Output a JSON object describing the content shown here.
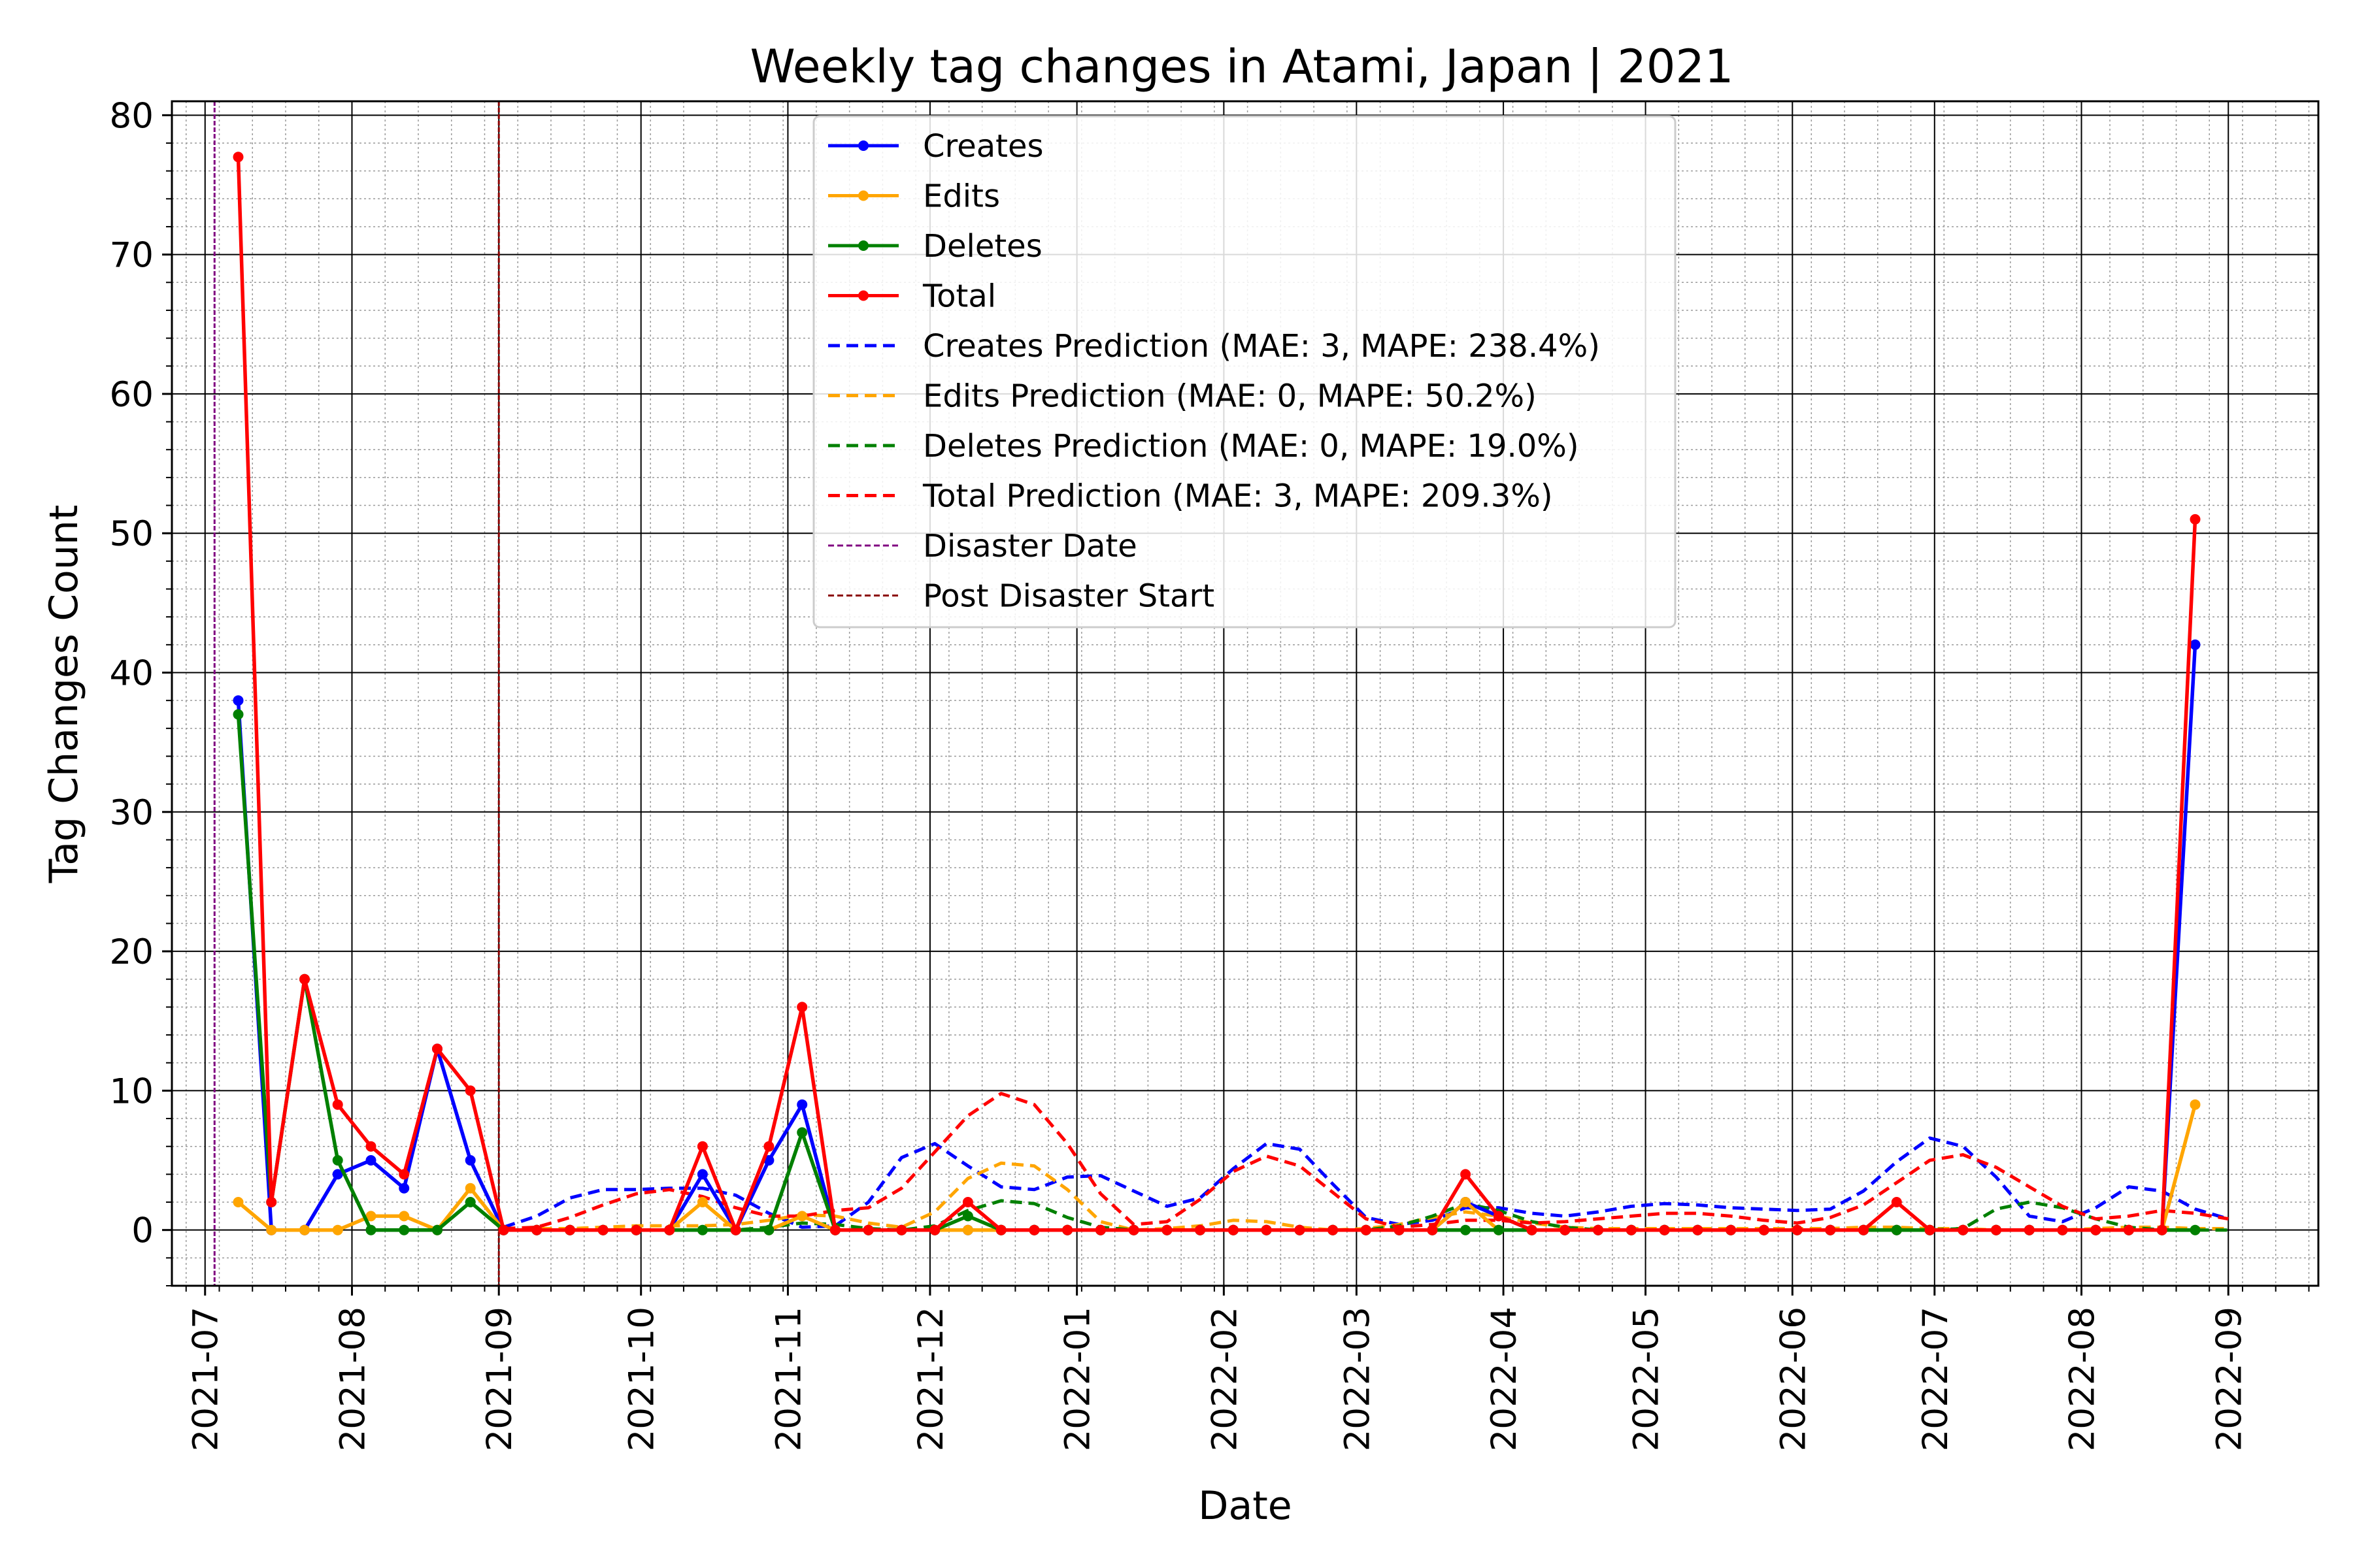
{
  "chart_data": {
    "type": "line",
    "title": "Weekly tag changes in Atami, Japan | 2021",
    "xlabel": "Date",
    "ylabel": "Tag Changes Count",
    "xlim": [
      "2021-06-24",
      "2022-09-20"
    ],
    "ylim": [
      -4,
      81
    ],
    "grid": true,
    "minor_grid": true,
    "legend_position": "upper center",
    "x_ticks": [
      "2021-07",
      "2021-08",
      "2021-09",
      "2021-10",
      "2021-11",
      "2021-12",
      "2022-01",
      "2022-02",
      "2022-03",
      "2022-04",
      "2022-05",
      "2022-06",
      "2022-07",
      "2022-08",
      "2022-09"
    ],
    "y_ticks": [
      0,
      10,
      20,
      30,
      40,
      50,
      60,
      70,
      80
    ],
    "x": [
      "2021-07-08",
      "2021-07-15",
      "2021-07-22",
      "2021-07-29",
      "2021-08-05",
      "2021-08-12",
      "2021-08-19",
      "2021-08-26",
      "2021-09-02",
      "2021-09-09",
      "2021-09-16",
      "2021-09-23",
      "2021-09-30",
      "2021-10-07",
      "2021-10-14",
      "2021-10-21",
      "2021-10-28",
      "2021-11-04",
      "2021-11-11",
      "2021-11-18",
      "2021-11-25",
      "2021-12-02",
      "2021-12-09",
      "2021-12-16",
      "2021-12-23",
      "2021-12-30",
      "2022-01-06",
      "2022-01-13",
      "2022-01-20",
      "2022-01-27",
      "2022-02-03",
      "2022-02-10",
      "2022-02-17",
      "2022-02-24",
      "2022-03-03",
      "2022-03-10",
      "2022-03-17",
      "2022-03-24",
      "2022-03-31",
      "2022-04-07",
      "2022-04-14",
      "2022-04-21",
      "2022-04-28",
      "2022-05-05",
      "2022-05-12",
      "2022-05-19",
      "2022-05-26",
      "2022-06-02",
      "2022-06-09",
      "2022-06-16",
      "2022-06-23",
      "2022-06-30",
      "2022-07-07",
      "2022-07-14",
      "2022-07-21",
      "2022-07-28",
      "2022-08-04",
      "2022-08-11",
      "2022-08-18",
      "2022-08-25"
    ],
    "series": [
      {
        "name": "Creates",
        "color": "#0000ff",
        "style": "solid",
        "marker": true,
        "values": [
          38,
          0,
          0,
          4,
          5,
          3,
          13,
          5,
          0,
          0,
          0,
          0,
          0,
          0,
          4,
          0,
          5,
          9,
          0,
          0,
          0,
          0,
          0,
          0,
          0,
          0,
          0,
          0,
          0,
          0,
          0,
          0,
          0,
          0,
          0,
          0,
          0,
          2,
          1,
          0,
          0,
          0,
          0,
          0,
          0,
          0,
          0,
          0,
          0,
          0,
          0,
          0,
          0,
          0,
          0,
          0,
          0,
          0,
          0,
          42
        ]
      },
      {
        "name": "Edits",
        "color": "#ffa500",
        "style": "solid",
        "marker": true,
        "values": [
          2,
          0,
          0,
          0,
          1,
          1,
          0,
          3,
          0,
          0,
          0,
          0,
          0,
          0,
          2,
          0,
          0,
          1,
          0,
          0,
          0,
          0,
          0,
          0,
          0,
          0,
          0,
          0,
          0,
          0,
          0,
          0,
          0,
          0,
          0,
          0,
          0,
          2,
          0,
          0,
          0,
          0,
          0,
          0,
          0,
          0,
          0,
          0,
          0,
          0,
          0,
          0,
          0,
          0,
          0,
          0,
          0,
          0,
          0,
          9
        ]
      },
      {
        "name": "Deletes",
        "color": "#008000",
        "style": "solid",
        "marker": true,
        "values": [
          37,
          2,
          18,
          5,
          0,
          0,
          0,
          2,
          0,
          0,
          0,
          0,
          0,
          0,
          0,
          0,
          0,
          7,
          0,
          0,
          0,
          0,
          1,
          0,
          0,
          0,
          0,
          0,
          0,
          0,
          0,
          0,
          0,
          0,
          0,
          0,
          0,
          0,
          0,
          0,
          0,
          0,
          0,
          0,
          0,
          0,
          0,
          0,
          0,
          0,
          0,
          0,
          0,
          0,
          0,
          0,
          0,
          0,
          0,
          0
        ]
      },
      {
        "name": "Total",
        "color": "#ff0000",
        "style": "solid",
        "marker": true,
        "values": [
          77,
          2,
          18,
          9,
          6,
          4,
          13,
          10,
          0,
          0,
          0,
          0,
          0,
          0,
          6,
          0,
          6,
          16,
          0,
          0,
          0,
          0,
          2,
          0,
          0,
          0,
          0,
          0,
          0,
          0,
          0,
          0,
          0,
          0,
          0,
          0,
          0,
          4,
          1,
          0,
          0,
          0,
          0,
          0,
          0,
          0,
          0,
          0,
          0,
          0,
          2,
          0,
          0,
          0,
          0,
          0,
          0,
          0,
          0,
          51
        ]
      }
    ],
    "predictions": {
      "x": [
        "2021-09-02",
        "2021-09-09",
        "2021-09-16",
        "2021-09-23",
        "2021-09-30",
        "2021-10-07",
        "2021-10-14",
        "2021-10-21",
        "2021-10-28",
        "2021-11-04",
        "2021-11-11",
        "2021-11-18",
        "2021-11-25",
        "2021-12-02",
        "2021-12-09",
        "2021-12-16",
        "2021-12-23",
        "2021-12-30",
        "2022-01-06",
        "2022-01-13",
        "2022-01-20",
        "2022-01-27",
        "2022-02-03",
        "2022-02-10",
        "2022-02-17",
        "2022-02-24",
        "2022-03-03",
        "2022-03-10",
        "2022-03-17",
        "2022-03-24",
        "2022-03-31",
        "2022-04-07",
        "2022-04-14",
        "2022-04-21",
        "2022-04-28",
        "2022-05-05",
        "2022-05-12",
        "2022-05-19",
        "2022-05-26",
        "2022-06-02",
        "2022-06-09",
        "2022-06-16",
        "2022-06-23",
        "2022-06-30",
        "2022-07-07",
        "2022-07-14",
        "2022-07-21",
        "2022-07-28",
        "2022-08-04",
        "2022-08-11",
        "2022-08-18",
        "2022-08-25",
        "2022-09-01"
      ],
      "series": [
        {
          "name": "Creates Prediction (MAE: 3, MAPE: 238.4%)",
          "color": "#0000ff",
          "style": "dashed",
          "values": [
            0.2,
            1.0,
            2.3,
            2.9,
            2.9,
            3.0,
            3.0,
            2.5,
            1.2,
            0.2,
            0.3,
            2.0,
            5.2,
            6.2,
            4.6,
            3.1,
            2.9,
            3.8,
            3.9,
            2.8,
            1.7,
            2.3,
            4.4,
            6.2,
            5.8,
            3.3,
            0.9,
            0.4,
            0.7,
            1.6,
            1.6,
            1.2,
            1.0,
            1.3,
            1.7,
            1.9,
            1.8,
            1.6,
            1.5,
            1.4,
            1.5,
            2.8,
            4.9,
            6.6,
            6.0,
            3.8,
            1.0,
            0.6,
            1.6,
            3.1,
            2.8,
            1.5,
            0.8
          ]
        },
        {
          "name": "Edits Prediction (MAE: 0, MAPE: 50.2%)",
          "color": "#ffa500",
          "style": "dashed",
          "values": [
            0.1,
            0.1,
            0.1,
            0.2,
            0.3,
            0.3,
            0.3,
            0.4,
            0.7,
            1.1,
            1.0,
            0.5,
            0.2,
            1.3,
            3.7,
            4.8,
            4.6,
            2.9,
            0.6,
            0.0,
            0.1,
            0.3,
            0.7,
            0.6,
            0.2,
            0.0,
            0.1,
            0.4,
            0.9,
            1.3,
            1.0,
            0.5,
            0.2,
            0.1,
            0.1,
            0.1,
            0.1,
            0.1,
            0.1,
            0.1,
            0.1,
            0.2,
            0.2,
            0.1,
            0.1,
            0.0,
            0.0,
            0.0,
            0.1,
            0.2,
            0.2,
            0.1,
            0.1
          ]
        },
        {
          "name": "Deletes Prediction (MAE: 0, MAPE: 19.0%)",
          "color": "#008000",
          "style": "dashed",
          "values": [
            0.0,
            0.0,
            0.0,
            0.0,
            0.0,
            0.0,
            0.0,
            0.0,
            0.2,
            0.5,
            0.4,
            0.1,
            0.0,
            0.3,
            1.4,
            2.1,
            1.9,
            0.9,
            0.2,
            0.0,
            0.0,
            0.0,
            0.0,
            0.0,
            0.0,
            0.0,
            0.0,
            0.3,
            1.0,
            1.9,
            1.4,
            0.6,
            0.2,
            0.0,
            0.0,
            0.0,
            0.0,
            0.0,
            0.0,
            0.0,
            0.0,
            0.0,
            0.0,
            0.0,
            0.1,
            1.5,
            2.0,
            1.6,
            0.8,
            0.2,
            0.0,
            0.0,
            0.0
          ]
        },
        {
          "name": "Total Prediction (MAE: 3, MAPE: 209.3%)",
          "color": "#ff0000",
          "style": "dashed",
          "values": [
            0.1,
            0.2,
            0.9,
            1.8,
            2.6,
            2.9,
            2.4,
            1.6,
            1.0,
            1.0,
            1.4,
            1.6,
            3.0,
            5.6,
            8.2,
            9.8,
            9.0,
            6.2,
            2.6,
            0.4,
            0.6,
            2.2,
            4.2,
            5.3,
            4.6,
            2.7,
            0.8,
            0.2,
            0.4,
            0.7,
            0.7,
            0.5,
            0.6,
            0.8,
            1.0,
            1.2,
            1.2,
            1.0,
            0.7,
            0.5,
            0.9,
            1.8,
            3.4,
            5.0,
            5.4,
            4.5,
            3.1,
            1.7,
            0.8,
            1.0,
            1.4,
            1.2,
            0.8
          ]
        }
      ]
    },
    "reference_lines": [
      {
        "name": "Disaster Date",
        "date": "2021-07-03",
        "color": "#800080",
        "style": "dashed"
      },
      {
        "name": "Post Disaster Start",
        "date": "2021-09-01",
        "color": "#8b0000",
        "style": "dashed"
      }
    ],
    "legend": [
      {
        "label": "Creates",
        "color": "#0000ff",
        "style": "solid",
        "marker": true
      },
      {
        "label": "Edits",
        "color": "#ffa500",
        "style": "solid",
        "marker": true
      },
      {
        "label": "Deletes",
        "color": "#008000",
        "style": "solid",
        "marker": true
      },
      {
        "label": "Total",
        "color": "#ff0000",
        "style": "solid",
        "marker": true
      },
      {
        "label": "Creates Prediction (MAE: 3, MAPE: 238.4%)",
        "color": "#0000ff",
        "style": "dashed",
        "marker": false
      },
      {
        "label": "Edits Prediction (MAE: 0, MAPE: 50.2%)",
        "color": "#ffa500",
        "style": "dashed",
        "marker": false
      },
      {
        "label": "Deletes Prediction (MAE: 0, MAPE: 19.0%)",
        "color": "#008000",
        "style": "dashed",
        "marker": false
      },
      {
        "label": "Total Prediction (MAE: 3, MAPE: 209.3%)",
        "color": "#ff0000",
        "style": "dashed",
        "marker": false
      },
      {
        "label": "Disaster Date",
        "color": "#800080",
        "style": "dashed-fine",
        "marker": false
      },
      {
        "label": "Post Disaster Start",
        "color": "#8b0000",
        "style": "dashed-fine",
        "marker": false
      }
    ]
  }
}
